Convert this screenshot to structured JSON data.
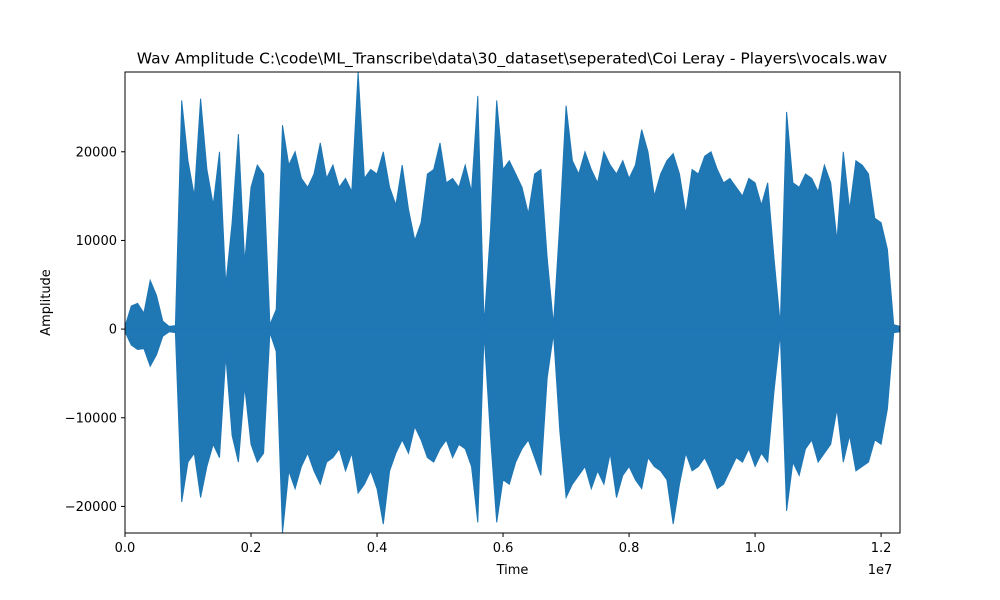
{
  "chart_data": {
    "type": "line",
    "title": "Wav Amplitude C:\\code\\ML_Transcribe\\data\\30_dataset\\seperated\\Coi Leray - Players\\vocals.wav",
    "xlabel": "Time",
    "ylabel": "Amplitude",
    "x_offset_label": "1e7",
    "xlim": [
      0,
      12300000
    ],
    "ylim": [
      -23000,
      29000
    ],
    "x_ticks": [
      {
        "value": 0,
        "label": "0.0"
      },
      {
        "value": 2000000,
        "label": "0.2"
      },
      {
        "value": 4000000,
        "label": "0.4"
      },
      {
        "value": 6000000,
        "label": "0.6"
      },
      {
        "value": 8000000,
        "label": "0.8"
      },
      {
        "value": 10000000,
        "label": "1.0"
      },
      {
        "value": 12000000,
        "label": "1.2"
      }
    ],
    "y_ticks": [
      {
        "value": -20000,
        "label": "−20000"
      },
      {
        "value": -10000,
        "label": "−10000"
      },
      {
        "value": 0,
        "label": "0"
      },
      {
        "value": 10000,
        "label": "10000"
      },
      {
        "value": 20000,
        "label": "20000"
      }
    ],
    "grid": false,
    "series": [
      {
        "color": "#1f77b4",
        "x": [
          0,
          100000,
          200000,
          300000,
          400000,
          500000,
          600000,
          700000,
          800000,
          900000,
          1000000,
          1100000,
          1200000,
          1300000,
          1400000,
          1500000,
          1600000,
          1700000,
          1800000,
          1900000,
          2000000,
          2100000,
          2200000,
          2300000,
          2400000,
          2500000,
          2600000,
          2700000,
          2800000,
          2900000,
          3000000,
          3100000,
          3200000,
          3300000,
          3400000,
          3500000,
          3600000,
          3700000,
          3800000,
          3900000,
          4000000,
          4100000,
          4200000,
          4300000,
          4400000,
          4500000,
          4600000,
          4700000,
          4800000,
          4900000,
          5000000,
          5100000,
          5200000,
          5300000,
          5400000,
          5500000,
          5600000,
          5700000,
          5800000,
          5900000,
          6000000,
          6100000,
          6200000,
          6300000,
          6400000,
          6500000,
          6600000,
          6700000,
          6800000,
          6900000,
          7000000,
          7100000,
          7200000,
          7300000,
          7400000,
          7500000,
          7600000,
          7700000,
          7800000,
          7900000,
          8000000,
          8100000,
          8200000,
          8300000,
          8400000,
          8500000,
          8600000,
          8700000,
          8800000,
          8900000,
          9000000,
          9100000,
          9200000,
          9300000,
          9400000,
          9500000,
          9600000,
          9700000,
          9800000,
          9900000,
          10000000,
          10100000,
          10200000,
          10300000,
          10400000,
          10500000,
          10600000,
          10700000,
          10800000,
          10900000,
          11000000,
          11100000,
          11200000,
          11300000,
          11400000,
          11500000,
          11600000,
          11700000,
          11800000,
          11900000,
          12000000,
          12100000,
          12200000,
          12300000
        ],
        "upper": [
          300,
          2600,
          2900,
          1800,
          5500,
          3800,
          900,
          300,
          400,
          25800,
          19000,
          15000,
          26000,
          18000,
          14000,
          20000,
          5000,
          12000,
          22000,
          7500,
          16000,
          18500,
          17500,
          500,
          2200,
          23000,
          18500,
          20000,
          17000,
          16000,
          17500,
          21000,
          17000,
          18500,
          16000,
          17000,
          15500,
          29000,
          17000,
          18000,
          17500,
          20000,
          16000,
          14000,
          18500,
          13500,
          10000,
          12000,
          17500,
          18000,
          21000,
          16500,
          17000,
          16000,
          18500,
          15500,
          26300,
          500,
          11000,
          25800,
          18000,
          19000,
          17500,
          16000,
          13000,
          17500,
          18000,
          8000,
          500,
          12000,
          25200,
          19000,
          17500,
          20000,
          18000,
          16500,
          20000,
          18500,
          17500,
          19000,
          17000,
          18500,
          22500,
          20000,
          15000,
          17500,
          19000,
          19800,
          17500,
          13000,
          18000,
          17500,
          19500,
          20000,
          18000,
          16500,
          17000,
          16000,
          15000,
          17000,
          16500,
          14000,
          16500,
          8000,
          500,
          24500,
          16500,
          16000,
          17500,
          17000,
          15500,
          18500,
          16500,
          10000,
          20000,
          13500,
          19000,
          18500,
          17500,
          12500,
          12000,
          9000,
          500,
          300
        ],
        "lower": [
          -300,
          -1800,
          -2300,
          -2200,
          -4200,
          -2900,
          -800,
          -300,
          -400,
          -19500,
          -15000,
          -14000,
          -19000,
          -15500,
          -13000,
          -14500,
          -3000,
          -12000,
          -15000,
          -6500,
          -13000,
          -15000,
          -14000,
          -400,
          -2500,
          -23000,
          -16000,
          -18000,
          -15500,
          -14000,
          -16000,
          -17500,
          -15000,
          -14500,
          -13500,
          -16000,
          -14000,
          -18500,
          -17500,
          -16000,
          -18000,
          -22000,
          -16000,
          -14000,
          -12500,
          -14000,
          -11000,
          -12500,
          -14500,
          -15000,
          -13500,
          -12500,
          -14500,
          -13000,
          -13500,
          -15500,
          -21800,
          -500,
          -12000,
          -21800,
          -17000,
          -17500,
          -15000,
          -13500,
          -12500,
          -14500,
          -16500,
          -5500,
          -500,
          -11500,
          -19000,
          -17500,
          -16500,
          -15500,
          -18000,
          -16000,
          -17500,
          -14000,
          -19000,
          -16500,
          -15500,
          -17000,
          -18000,
          -14500,
          -15500,
          -16000,
          -17000,
          -22000,
          -17500,
          -14000,
          -16000,
          -15500,
          -14500,
          -16000,
          -18000,
          -17500,
          -16000,
          -14500,
          -15000,
          -13500,
          -15500,
          -14000,
          -15000,
          -7000,
          -500,
          -20500,
          -15000,
          -16500,
          -13500,
          -12500,
          -15000,
          -14000,
          -13000,
          -9000,
          -15000,
          -12000,
          -16000,
          -15500,
          -15000,
          -12500,
          -13000,
          -9000,
          -400,
          -300
        ]
      }
    ]
  }
}
